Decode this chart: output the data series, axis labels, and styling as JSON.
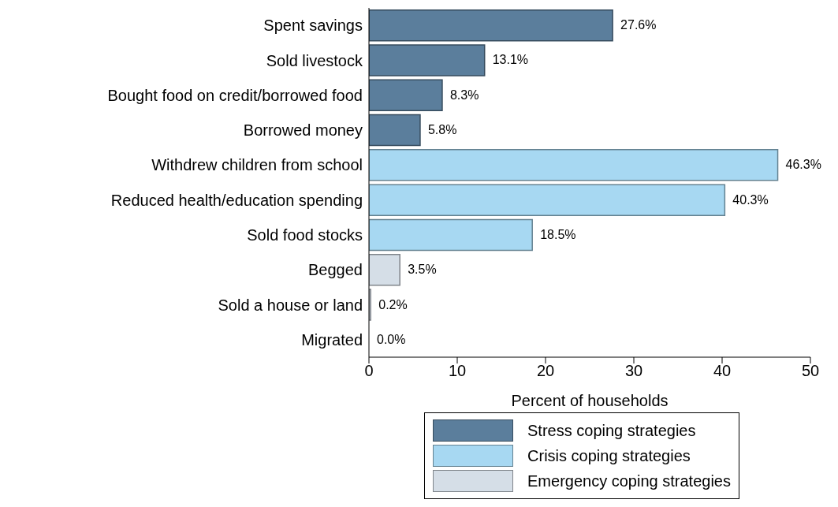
{
  "chart_data": {
    "type": "bar",
    "orientation": "horizontal",
    "xlabel": "Percent of households",
    "categories": [
      "Spent savings",
      "Sold livestock",
      "Bought food on credit/borrowed food",
      "Borrowed money",
      "Withdrew children from school",
      "Reduced health/education spending",
      "Sold food stocks",
      "Begged",
      "Sold a house or land",
      "Migrated"
    ],
    "series": [
      {
        "name": "Stress coping strategies",
        "color": "#5b7e9c",
        "values": [
          27.6,
          13.1,
          8.3,
          5.8,
          null,
          null,
          null,
          null,
          null,
          null
        ],
        "value_labels": [
          "27.6%",
          "13.1%",
          "8.3%",
          "5.8%",
          null,
          null,
          null,
          null,
          null,
          null
        ]
      },
      {
        "name": "Crisis coping strategies",
        "color": "#a7d8f2",
        "values": [
          null,
          null,
          null,
          null,
          46.3,
          40.3,
          18.5,
          null,
          null,
          null
        ],
        "value_labels": [
          null,
          null,
          null,
          null,
          "46.3%",
          "40.3%",
          "18.5%",
          null,
          null,
          null
        ]
      },
      {
        "name": "Emergency coping strategies",
        "color": "#d5dee7",
        "values": [
          null,
          null,
          null,
          null,
          null,
          null,
          null,
          3.5,
          0.2,
          0.0
        ],
        "value_labels": [
          null,
          null,
          null,
          null,
          null,
          null,
          null,
          "3.5%",
          "0.2%",
          "0.0%"
        ]
      }
    ],
    "xlim": [
      0,
      50
    ],
    "xticks": [
      0,
      10,
      20,
      30,
      40,
      50
    ],
    "grid": false,
    "legend": "bottom"
  }
}
